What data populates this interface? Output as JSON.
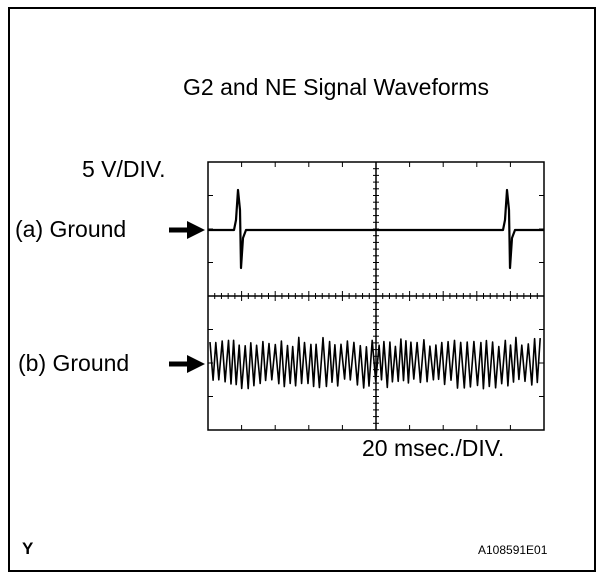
{
  "title": "G2 and NE Signal Waveforms",
  "voltage_scale": "5 V/DIV.",
  "time_scale": "20 msec./DIV.",
  "channels": [
    {
      "label": "(a) Ground",
      "signal": "G2",
      "pulses": 2
    },
    {
      "label": "(b) Ground",
      "signal": "NE"
    }
  ],
  "figure_letter": "Y",
  "figure_id": "A108591E01",
  "grid": {
    "divisions_x": 10,
    "divisions_y": 8
  }
}
